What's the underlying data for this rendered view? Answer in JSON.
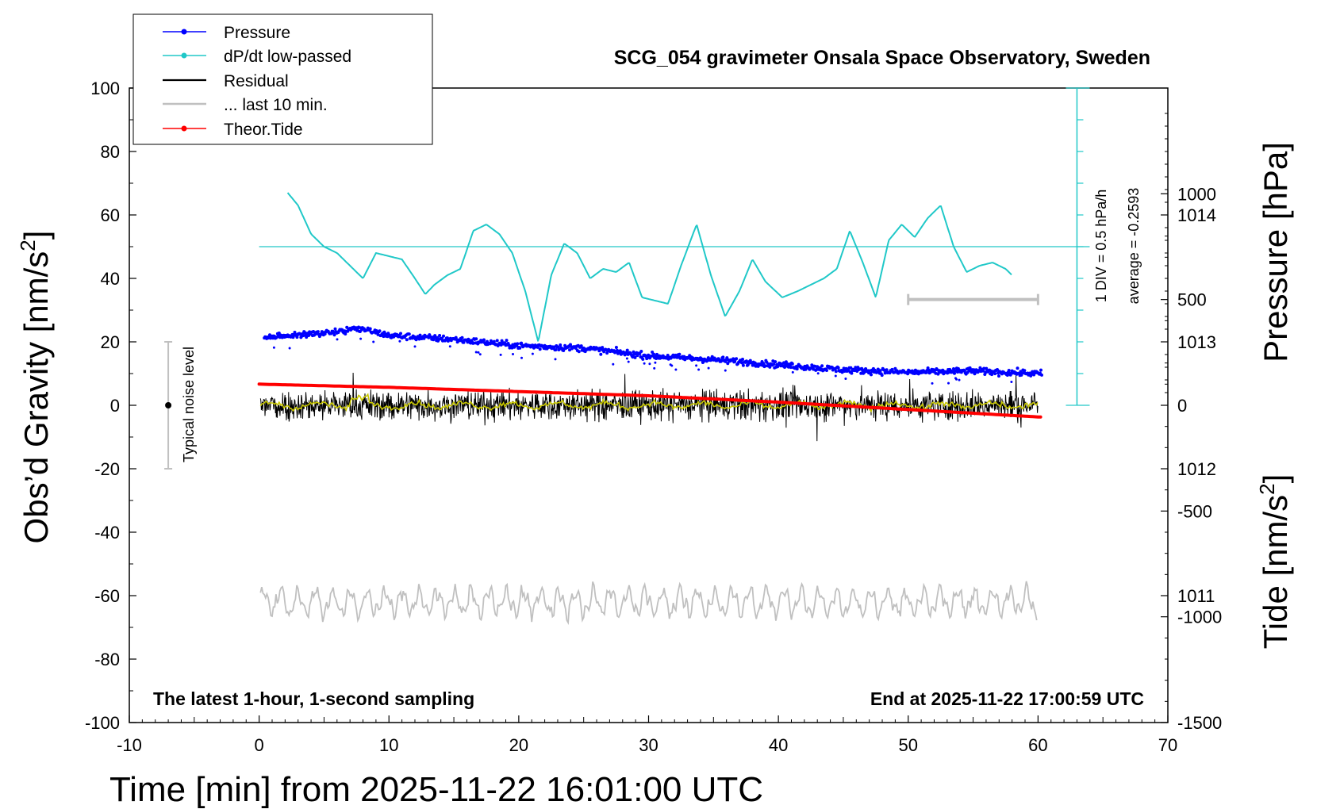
{
  "chart_data": {
    "type": "line",
    "title": "SCG_054 gravimeter Onsala Space Observatory, Sweden",
    "xlabel": "Time [min] from 2025-11-22 16:01:00 UTC",
    "ylabel_left_prefix": "Obs’d Gravity [nm/s",
    "ylabel_left_suffix": "]",
    "ylabel_right_top": "Pressure [hPa]",
    "ylabel_right_bottom_prefix": "Tide [nm/s",
    "ylabel_right_bottom_suffix": "]",
    "unit_superscript": "2",
    "xlim": [
      -10,
      70
    ],
    "ylim": [
      -100,
      100
    ],
    "pressure_ylim": [
      1010,
      1015
    ],
    "tide_ylim": [
      -1500,
      1500
    ],
    "x_ticks": [
      "-10",
      "0",
      "10",
      "20",
      "30",
      "40",
      "50",
      "60",
      "70"
    ],
    "y_ticks": [
      "-100",
      "-80",
      "-60",
      "-40",
      "-20",
      "0",
      "20",
      "40",
      "60",
      "80",
      "100"
    ],
    "pressure_ticks": [
      "1011",
      "1012",
      "1013",
      "1014"
    ],
    "tide_ticks": [
      "-1500",
      "-1000",
      "-500",
      "0",
      "500",
      "1000"
    ],
    "legend": [
      {
        "label": "Pressure",
        "color": "#0000ff",
        "marker": true
      },
      {
        "label": "dP/dt low-passed",
        "color": "#20c8c8",
        "marker": true
      },
      {
        "label": "Residual",
        "color": "#000000",
        "marker": false
      },
      {
        "label": "... last 10 min.",
        "color": "#c0c0c0",
        "marker": false
      },
      {
        "label": "Theor.Tide",
        "color": "#ff0000",
        "marker": true
      }
    ],
    "annotations": {
      "noise_label": "Typical noise level",
      "dpdt_scale": "1 DIV = 0.5 hPa/h",
      "dpdt_average": "average = -0.2593",
      "bottom_left": "The latest 1-hour, 1-second sampling",
      "bottom_right": "End at 2025-11-22 17:00:59 UTC"
    },
    "series": [
      {
        "name": "Pressure",
        "unit": "hPa",
        "x": [
          0,
          5,
          8,
          10,
          15,
          20,
          25,
          30,
          35,
          40,
          45,
          50,
          55,
          60
        ],
        "values": [
          1013.03,
          1013.07,
          1013.1,
          1013.05,
          1013.02,
          1012.97,
          1012.95,
          1012.89,
          1012.86,
          1012.82,
          1012.78,
          1012.76,
          1012.77,
          1012.75
        ]
      },
      {
        "name": "dP/dt low-passed",
        "unit": "nm/s2 plot scale",
        "x": [
          2.2,
          3,
          4,
          5,
          6,
          7,
          8,
          9,
          10,
          11,
          12,
          12.8,
          13.5,
          14.5,
          15.5,
          16.5,
          17.5,
          18.5,
          19.5,
          20.5,
          21.5,
          22.5,
          23.5,
          24.5,
          25.5,
          26.5,
          27.5,
          28.5,
          29.5,
          30.5,
          31.5,
          32.5,
          33.7,
          34.8,
          35.9,
          37,
          38,
          39,
          40.3,
          41.5,
          42.5,
          43.5,
          44.5,
          45.5,
          46.5,
          47.5,
          48.5,
          49.5,
          50.5,
          51.5,
          52.5,
          53.5,
          54.5,
          55.5,
          56.5,
          57.5,
          58
        ],
        "values": [
          67,
          63,
          54,
          50,
          48,
          44,
          40,
          48,
          47,
          46,
          40,
          35,
          38,
          41,
          43,
          55,
          57,
          54,
          48,
          36,
          20,
          41,
          51,
          48,
          40,
          43,
          42,
          45,
          34,
          33,
          32,
          44,
          57,
          41,
          28,
          36,
          46,
          39,
          34,
          36,
          38,
          40,
          43,
          55,
          45,
          34,
          52,
          57,
          53,
          59,
          63,
          50,
          42,
          44,
          45,
          43,
          41
        ]
      },
      {
        "name": "Residual",
        "unit": "nm/s2",
        "x": [
          0,
          60
        ],
        "values": [
          0,
          0
        ]
      },
      {
        "name": "Theor.Tide",
        "unit": "nm/s2",
        "x": [
          0,
          10,
          20,
          30,
          40,
          50,
          60
        ],
        "values": [
          100,
          85,
          65,
          45,
          15,
          -20,
          -55
        ]
      }
    ],
    "noise_bar": {
      "x": -7,
      "center": 0,
      "low": -20,
      "high": 20
    },
    "last10_bar": {
      "x_start": 50,
      "x_end": 60,
      "tide_value": 500
    },
    "dpdt_axis": {
      "x": 63,
      "zero_line": 50,
      "bottom": 0,
      "top": 100
    },
    "grid": false
  }
}
